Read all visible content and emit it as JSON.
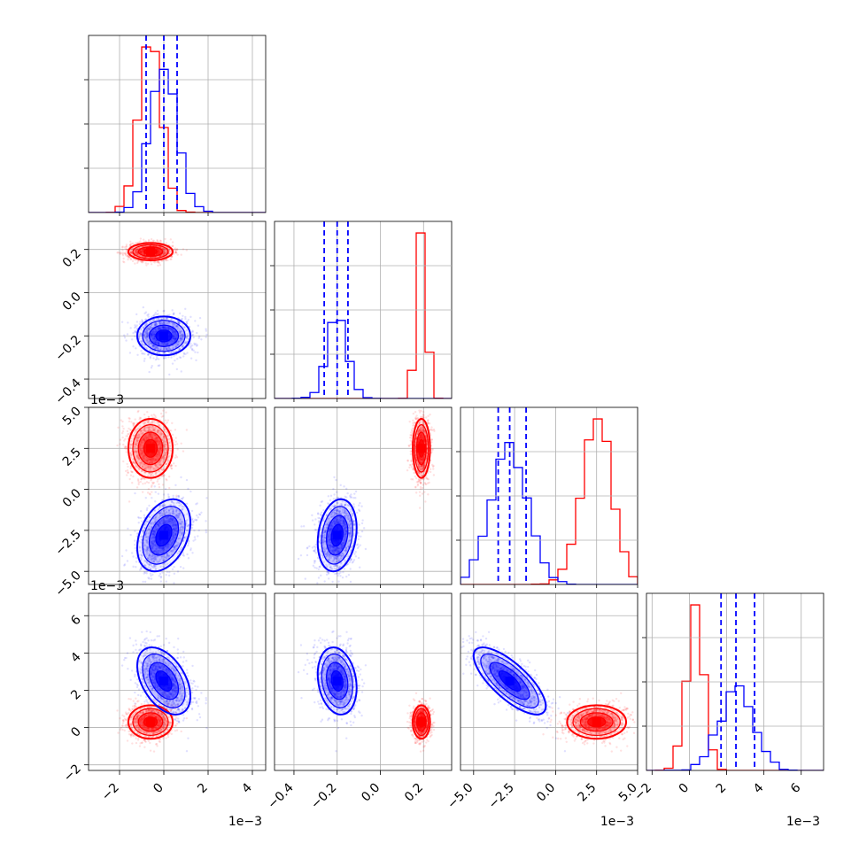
{
  "chart_data": {
    "type": "corner",
    "grid": true,
    "series": [
      {
        "name": "",
        "color": "#ff0000",
        "means": [
          -0.0006,
          0.19,
          0.0025,
          0.0003
        ],
        "sd": [
          0.0005,
          0.02,
          0.0009,
          0.00045
        ],
        "corr": [
          [
            1,
            0,
            0,
            0
          ],
          [
            0,
            1,
            0,
            0
          ],
          [
            0,
            0,
            1,
            0
          ],
          [
            0,
            0,
            0,
            1
          ]
        ]
      },
      {
        "name": "",
        "color": "#0000ff",
        "means": [
          0.0,
          -0.2,
          -0.0028,
          0.0025
        ],
        "sd": [
          0.0006,
          0.045,
          0.0011,
          0.0009
        ],
        "corr": [
          [
            1,
            0,
            0.35,
            -0.45
          ],
          [
            0,
            1,
            0.2,
            -0.2
          ],
          [
            0.35,
            0.2,
            1,
            -0.75
          ],
          [
            -0.45,
            -0.2,
            -0.75,
            1
          ]
        ]
      }
    ],
    "quantile_lines": {
      "color": "#0000ff",
      "values": [
        [
          -0.0008,
          0.0,
          0.0006
        ],
        [
          -0.26,
          -0.2,
          -0.15
        ],
        [
          -0.0035,
          -0.0028,
          -0.0018
        ],
        [
          0.0017,
          0.0025,
          0.0035
        ]
      ]
    },
    "axes": [
      {
        "range": [
          -0.0034,
          0.0046
        ],
        "ticks": [
          -0.002,
          0.0,
          0.002,
          0.004
        ],
        "tick_labels": [
          "−2",
          "0",
          "2",
          "4"
        ],
        "offset_label": "1e−3"
      },
      {
        "range": [
          -0.49,
          0.33
        ],
        "ticks": [
          -0.4,
          -0.2,
          0.0,
          0.2
        ],
        "tick_labels": [
          "−0.4",
          "−0.2",
          "0.0",
          "0.2"
        ],
        "offset_label": ""
      },
      {
        "range": [
          -0.0058,
          0.005
        ],
        "ticks": [
          -0.005,
          -0.0025,
          0.0,
          0.0025,
          0.005
        ],
        "tick_labels": [
          "−5.0",
          "−2.5",
          "0.0",
          "2.5",
          "5.0"
        ],
        "offset_label": "1e−3"
      },
      {
        "range": [
          -0.0023,
          0.0072
        ],
        "ticks": [
          -0.002,
          0.0,
          0.002,
          0.004,
          0.006
        ],
        "tick_labels": [
          "−2",
          "0",
          "2",
          "4",
          "6"
        ],
        "offset_label": "1e−3"
      }
    ],
    "y_axes": [
      null,
      {
        "ticks": [
          -0.4,
          -0.2,
          0.0,
          0.2
        ],
        "tick_labels": [
          "−0.4",
          "−0.2",
          "0.0",
          "0.2"
        ],
        "offset_label": ""
      },
      {
        "ticks": [
          -0.005,
          -0.0025,
          0.0,
          0.0025,
          0.005
        ],
        "tick_labels": [
          "−5.0",
          "−2.5",
          "0.0",
          "2.5",
          "5.0"
        ],
        "offset_label": "1e−3"
      },
      {
        "ticks": [
          -0.002,
          0.0,
          0.002,
          0.004,
          0.006
        ],
        "tick_labels": [
          "−2",
          "0",
          "2",
          "4",
          "6"
        ],
        "offset_label": "1e−3"
      }
    ]
  }
}
